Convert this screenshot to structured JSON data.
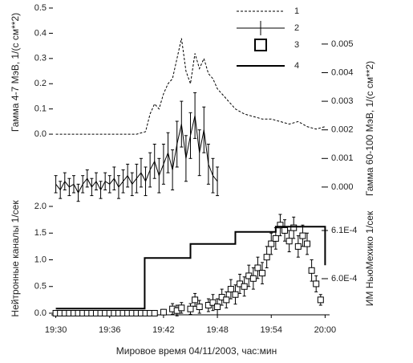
{
  "chart_data": [
    {
      "type": "line",
      "ylabel": "Гамма 4-7 МэВ, 1/(с см**2)",
      "y2label": "Гамма 60-100 МэВ, 1/(с см**2)",
      "xlim": [
        -0.5,
        30.5
      ],
      "ylim": [
        -0.264,
        0.5
      ],
      "y2lim": [
        -0.00048,
        0.00626
      ],
      "yticks": [
        {
          "value": 0,
          "label": "0.0"
        },
        0.1,
        0.2,
        0.3,
        0.4,
        0.5
      ],
      "y2ticks": [
        {
          "value": 0,
          "label": "0.000"
        },
        {
          "value": 0.001,
          "label": "0.001"
        },
        {
          "value": 0.002,
          "label": "0.002"
        },
        {
          "value": 0.003,
          "label": "0.003"
        },
        {
          "value": 0.004,
          "label": "0.004"
        },
        {
          "value": 0.005,
          "label": "0.005"
        }
      ],
      "series": [
        {
          "name": "1",
          "style": "dashed",
          "color": "#000000",
          "x": [
            0,
            2,
            4,
            6,
            8,
            9,
            10,
            10.5,
            11,
            11.5,
            12,
            12.5,
            13,
            13.5,
            14,
            14.5,
            15,
            15.5,
            16,
            16.5,
            17,
            17.5,
            18,
            19,
            20,
            21,
            22,
            23,
            24,
            25,
            26,
            27,
            28,
            29,
            30
          ],
          "values": [
            0,
            0,
            0,
            0,
            0,
            0,
            0.01,
            0.08,
            0.12,
            0.1,
            0.16,
            0.2,
            0.22,
            0.3,
            0.38,
            0.25,
            0.2,
            0.32,
            0.26,
            0.3,
            0.24,
            0.22,
            0.18,
            0.14,
            0.1,
            0.08,
            0.07,
            0.06,
            0.06,
            0.05,
            0.04,
            0.05,
            0.03,
            0.02,
            0.03
          ]
        },
        {
          "name": "2",
          "style": "errorbar",
          "color": "#000000",
          "axis": "y2",
          "x": [
            0,
            0.5,
            1,
            1.5,
            2,
            2.5,
            3,
            3.5,
            4,
            4.5,
            5,
            5.5,
            6,
            6.5,
            7,
            7.5,
            8,
            8.5,
            9,
            9.5,
            10,
            10.5,
            11,
            11.5,
            12,
            12.5,
            13,
            13.5,
            14,
            14.5,
            15,
            15.5,
            16,
            16.5,
            17,
            17.5,
            18
          ],
          "values": [
            0.0001,
            -0.0001,
            0.0002,
            0,
            0.0001,
            -0.0002,
            0.0001,
            0.0003,
            0,
            0.0002,
            -0.0001,
            0.0002,
            0.0001,
            0.0003,
            0,
            0.0002,
            0.0004,
            0.0001,
            0.0003,
            0.0005,
            0.0002,
            0.0006,
            0.0009,
            0.0004,
            0.0008,
            0.0012,
            0.0006,
            0.0015,
            0.0022,
            0.001,
            0.0018,
            0.0025,
            0.0012,
            0.002,
            0.0008,
            0.0004,
            0.0002
          ],
          "errors": [
            0.0003,
            0.0003,
            0.0003,
            0.0003,
            0.0003,
            0.0003,
            0.0003,
            0.0003,
            0.0003,
            0.0003,
            0.0003,
            0.0003,
            0.0003,
            0.0004,
            0.0004,
            0.0004,
            0.0004,
            0.0004,
            0.0005,
            0.0005,
            0.0005,
            0.0006,
            0.0006,
            0.0006,
            0.0007,
            0.0007,
            0.0007,
            0.0008,
            0.0008,
            0.0008,
            0.0008,
            0.0008,
            0.0008,
            0.0008,
            0.0007,
            0.0006,
            0.0005
          ]
        },
        {
          "name": "3",
          "style": "square-legend",
          "color": "#000000",
          "x": [],
          "values": []
        },
        {
          "name": "4",
          "style": "thick-legend",
          "color": "#000000",
          "x": [],
          "values": []
        }
      ]
    },
    {
      "type": "line",
      "xlabel": "Мировое время 04/11/2003, час:мин",
      "ylabel": "Нейтронные каналы 1/сек",
      "y2label": "ИМ НьюМехико 1/сек",
      "xlim": [
        -0.5,
        30.5
      ],
      "ylim": [
        -0.03,
        2.0
      ],
      "y2lim": [
        0.0005925,
        0.000615
      ],
      "xticks": [
        {
          "value": 0,
          "label": "19:30"
        },
        {
          "value": 6,
          "label": "19:36"
        },
        {
          "value": 12,
          "label": "19:42"
        },
        {
          "value": 18,
          "label": "19:48"
        },
        {
          "value": 24,
          "label": "19:54"
        },
        {
          "value": 30,
          "label": "20:00"
        }
      ],
      "yticks": [
        {
          "value": 0,
          "label": "0.0"
        },
        0.5,
        {
          "value": 1,
          "label": "1.0"
        },
        1.5,
        {
          "value": 2,
          "label": "2.0"
        }
      ],
      "y2ticks": [
        {
          "value": 0.0006,
          "label": "6.0E-4"
        },
        {
          "value": 0.00061,
          "label": "6.1E-4"
        }
      ],
      "series": [
        {
          "style": "square",
          "color": "#000000",
          "x": [
            0,
            0.5,
            1,
            1.5,
            2,
            2.5,
            3,
            3.5,
            4,
            4.5,
            5,
            5.5,
            6,
            6.5,
            7,
            7.5,
            8,
            8.5,
            9,
            9.5,
            10,
            10.5,
            11,
            12,
            13,
            13.5,
            14,
            15,
            15.5,
            16,
            17,
            17.5,
            18,
            18.5,
            19,
            19.5,
            20,
            20.5,
            21,
            21.5,
            22,
            22.5,
            23,
            23.5,
            24,
            24.5,
            25,
            25.5,
            26,
            26.5,
            27,
            27.5,
            28,
            28.5,
            29,
            29.5
          ],
          "values": [
            0,
            0,
            0,
            0,
            0,
            0,
            0,
            0,
            0,
            0,
            0,
            0,
            0,
            0,
            0,
            0,
            0,
            0,
            0,
            0,
            0,
            0,
            0,
            0.02,
            0.08,
            0.05,
            0.1,
            0.08,
            0.25,
            0.12,
            0.15,
            0.2,
            0.12,
            0.3,
            0.25,
            0.45,
            0.35,
            0.55,
            0.5,
            0.7,
            0.65,
            0.85,
            0.75,
            1.05,
            1.3,
            1.4,
            1.65,
            1.55,
            1.35,
            1.6,
            1.25,
            1.45,
            1.3,
            0.8,
            0.55,
            0.25
          ],
          "errors": [
            0.03,
            0.03,
            0.03,
            0.03,
            0.03,
            0.03,
            0.03,
            0.03,
            0.03,
            0.03,
            0.03,
            0.03,
            0.03,
            0.03,
            0.03,
            0.03,
            0.03,
            0.03,
            0.03,
            0.03,
            0.03,
            0.03,
            0.03,
            0.05,
            0.1,
            0.1,
            0.1,
            0.1,
            0.12,
            0.12,
            0.12,
            0.15,
            0.15,
            0.15,
            0.15,
            0.18,
            0.18,
            0.18,
            0.18,
            0.2,
            0.2,
            0.2,
            0.2,
            0.2,
            0.2,
            0.2,
            0.2,
            0.2,
            0.2,
            0.2,
            0.2,
            0.2,
            0.2,
            0.2,
            0.15,
            0.1
          ]
        },
        {
          "style": "thick",
          "color": "#000000",
          "axis": "y2",
          "x": [
            0,
            9.9,
            9.9,
            15,
            15,
            20,
            20,
            24.5,
            24.5,
            30,
            30
          ],
          "values": [
            0.0005938,
            0.0005938,
            0.0006043,
            0.0006043,
            0.0006072,
            0.0006072,
            0.0006097,
            0.0006097,
            0.0006108,
            0.0006108,
            0.0006028
          ]
        }
      ]
    }
  ]
}
